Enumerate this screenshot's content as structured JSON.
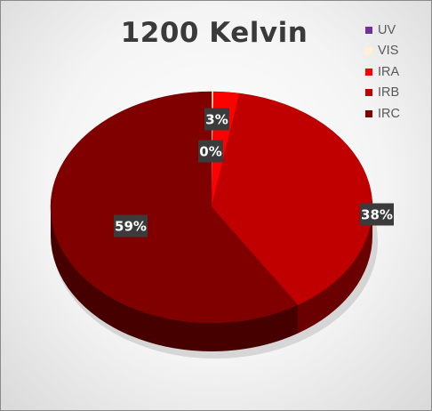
{
  "chart_data": {
    "type": "pie",
    "title": "1200 Kelvin",
    "categories": [
      "UV",
      "VIS",
      "IRA",
      "IRB",
      "IRC"
    ],
    "values": [
      0,
      0.2,
      2.6,
      38.2,
      59.0
    ],
    "data_labels": [
      "",
      "0%",
      "3%",
      "38%",
      "59%"
    ],
    "colors": [
      "#7030a0",
      "#fff2cc",
      "#ff0000",
      "#c00000",
      "#800000"
    ],
    "legend": "top-right",
    "style": "3d"
  }
}
